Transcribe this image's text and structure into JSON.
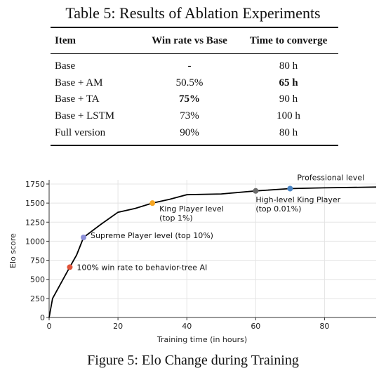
{
  "table": {
    "caption": "Table 5: Results of Ablation Experiments",
    "headers": [
      "Item",
      "Win rate vs Base",
      "Time to converge"
    ],
    "rows": [
      {
        "item": "Base",
        "win_rate": "-",
        "time": "80 h",
        "bold_win": false,
        "bold_time": false
      },
      {
        "item": "Base + AM",
        "win_rate": "50.5%",
        "time": "65 h",
        "bold_win": false,
        "bold_time": true
      },
      {
        "item": "Base + TA",
        "win_rate": "75%",
        "time": "90 h",
        "bold_win": true,
        "bold_time": false
      },
      {
        "item": "Base + LSTM",
        "win_rate": "73%",
        "time": "100 h",
        "bold_win": false,
        "bold_time": false
      },
      {
        "item": "Full version",
        "win_rate": "90%",
        "time": "80 h",
        "bold_win": false,
        "bold_time": false
      }
    ]
  },
  "figure": {
    "caption": "Figure 5: Elo Change during Training"
  },
  "chart_data": {
    "type": "line",
    "xlabel": "Training time (in hours)",
    "ylabel": "Elo score",
    "xlim": [
      0,
      95
    ],
    "ylim": [
      0,
      1750
    ],
    "xticks": [
      0,
      20,
      40,
      60,
      80
    ],
    "yticks": [
      0,
      250,
      500,
      750,
      1000,
      1250,
      1500,
      1750
    ],
    "grid": true,
    "line_color": "#000000",
    "series": [
      {
        "x": [
          0,
          1,
          6,
          8,
          10,
          15,
          20,
          25,
          30,
          35,
          40,
          50,
          60,
          70,
          80,
          95
        ],
        "y": [
          0,
          250,
          660,
          820,
          1050,
          1220,
          1380,
          1430,
          1500,
          1550,
          1610,
          1620,
          1660,
          1690,
          1700,
          1710
        ]
      }
    ],
    "markers": [
      {
        "x": 6,
        "y": 660,
        "color": "#e0533a",
        "label": "100% win rate to behavior-tree AI",
        "label_lines": [
          "100% win rate to behavior-tree AI"
        ]
      },
      {
        "x": 10,
        "y": 1050,
        "color": "#8c8fd8",
        "label": "Supreme Player level (top 10%)",
        "label_lines": [
          "Supreme Player level (top 10%)"
        ]
      },
      {
        "x": 30,
        "y": 1500,
        "color": "#f5a623",
        "label": "King Player level (top 1%)",
        "label_lines": [
          "King Player level",
          "(top 1%)"
        ]
      },
      {
        "x": 60,
        "y": 1660,
        "color": "#6b6b6b",
        "label": "High-level King Player (top 0.01%)",
        "label_lines": [
          "High-level King Player",
          "(top 0.01%)"
        ]
      },
      {
        "x": 70,
        "y": 1690,
        "color": "#4b86c5",
        "label": "Professional level",
        "label_lines": [
          "Professional level"
        ]
      }
    ]
  }
}
